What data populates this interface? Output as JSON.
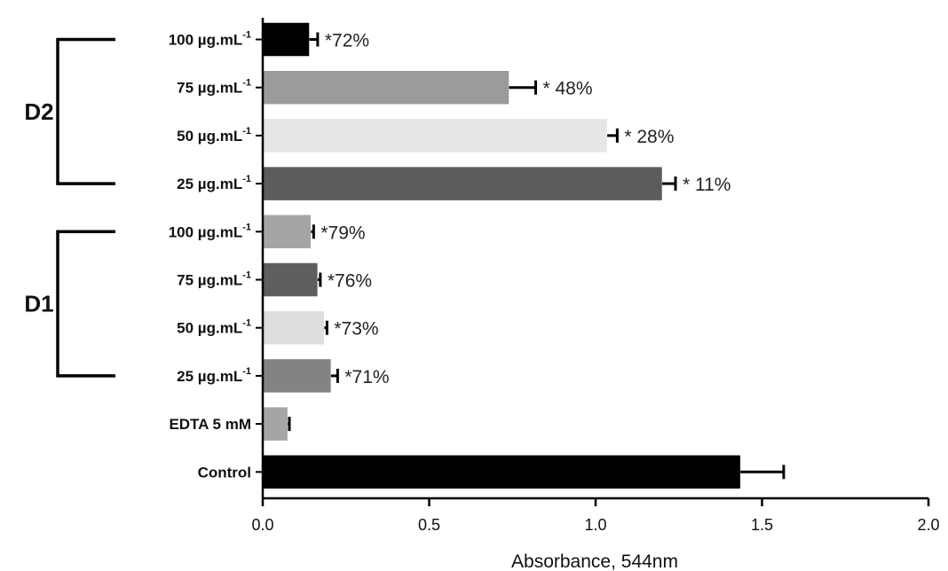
{
  "chart_data": {
    "type": "bar",
    "orientation": "horizontal",
    "xlabel": "Absorbance, 544nm",
    "xlim": [
      0,
      2.0
    ],
    "xticks": [
      "0.0",
      "0.5",
      "1.0",
      "1.5",
      "2.0"
    ],
    "grid": false,
    "legend": "none",
    "bars": [
      {
        "label": "100 µg.mL",
        "sup": "-1",
        "value": 0.14,
        "error": 0.025,
        "annotation": "*72%",
        "color": "#000000"
      },
      {
        "label": "75 µg.mL",
        "sup": "-1",
        "value": 0.74,
        "error": 0.08,
        "annotation": "* 48%",
        "color": "#9b9b9b"
      },
      {
        "label": "50 µg.mL",
        "sup": "-1",
        "value": 1.035,
        "error": 0.03,
        "annotation": "* 28%",
        "color": "#e6e6e6"
      },
      {
        "label": "25 µg.mL",
        "sup": "-1",
        "value": 1.2,
        "error": 0.04,
        "annotation": "* 11%",
        "color": "#5c5c5c"
      },
      {
        "label": "100 µg.mL",
        "sup": "-1",
        "value": 0.145,
        "error": 0.008,
        "annotation": "*79%",
        "color": "#a5a5a5"
      },
      {
        "label": "75 µg.mL",
        "sup": "-1",
        "value": 0.165,
        "error": 0.008,
        "annotation": "*76%",
        "color": "#5e5e5e"
      },
      {
        "label": "50 µg.mL",
        "sup": "-1",
        "value": 0.185,
        "error": 0.008,
        "annotation": "*73%",
        "color": "#dedede"
      },
      {
        "label": "25 µg.mL",
        "sup": "-1",
        "value": 0.205,
        "error": 0.02,
        "annotation": "*71%",
        "color": "#838383"
      },
      {
        "label": "EDTA 5 mM",
        "sup": "",
        "value": 0.075,
        "error": 0.005,
        "annotation": "",
        "color": "#a5a5a5"
      },
      {
        "label": "Control",
        "sup": "",
        "value": 1.435,
        "error": 0.13,
        "annotation": "",
        "color": "#000000"
      }
    ],
    "groups": [
      {
        "label": "D2",
        "bars": [
          0,
          3
        ]
      },
      {
        "label": "D1",
        "bars": [
          4,
          7
        ]
      }
    ]
  }
}
